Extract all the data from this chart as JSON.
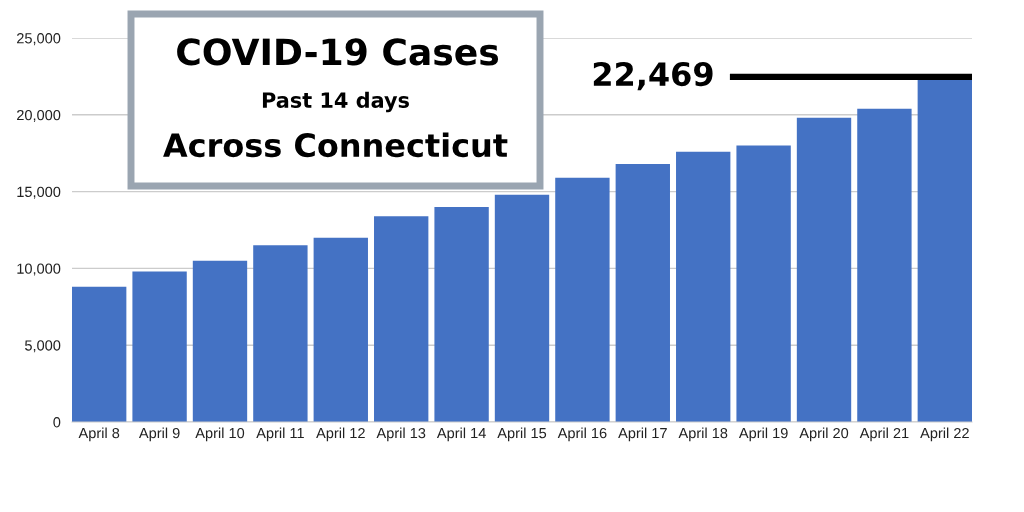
{
  "chart_data": {
    "type": "bar",
    "title": "COVID-19 Cases",
    "subtitle": "Past 14 days",
    "annotations": [
      "Across Connecticut"
    ],
    "categories": [
      "April 8",
      "April 9",
      "April 10",
      "April 11",
      "April 12",
      "April 13",
      "April 14",
      "April 15",
      "April 16",
      "April 17",
      "April 18",
      "April 19",
      "April 20",
      "April 21",
      "April 22"
    ],
    "values": [
      8800,
      9800,
      10500,
      11500,
      12000,
      13400,
      14000,
      14800,
      15900,
      16800,
      17600,
      18000,
      19800,
      20400,
      22469
    ],
    "color": "#4472c4",
    "ylim": [
      0,
      25000
    ],
    "yticks": [
      0,
      {
        "value": 5000,
        "label": "5,000"
      },
      {
        "value": 10000,
        "label": "10,000"
      },
      {
        "value": 15000,
        "label": "15,000"
      },
      {
        "value": 20000,
        "label": "20,000"
      },
      {
        "value": 25000,
        "label": "25,000"
      }
    ],
    "grid": "y",
    "ref_lines": [
      {
        "axis": "y",
        "value": 22469,
        "label": "22,469",
        "color": "#000000"
      }
    ]
  }
}
